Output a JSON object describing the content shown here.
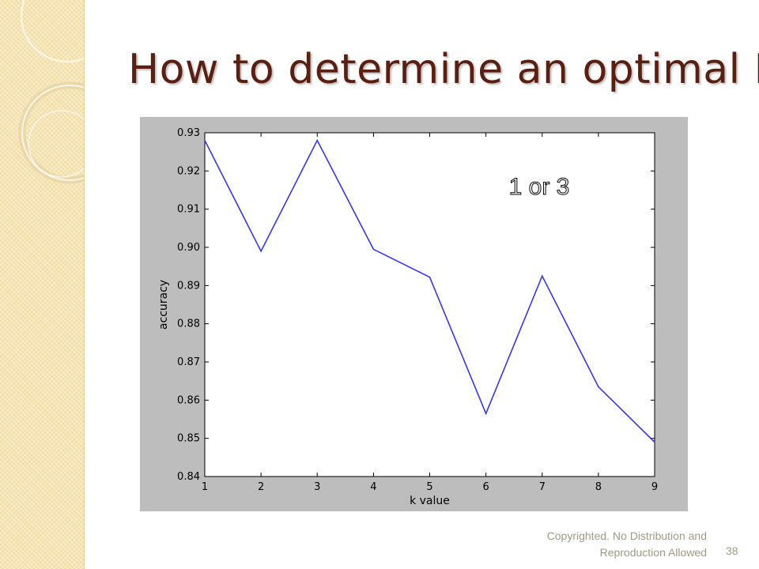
{
  "slide": {
    "title": "How to determine an optimal K",
    "footer_line1": "Copyrighted. No Distribution and",
    "footer_line2": "Reproduction Allowed",
    "page_number": "38"
  },
  "colors": {
    "title": "#5a1f10",
    "line": "#3434ff",
    "frame": "#bdbdbd",
    "side_strip": "#f6e4b3",
    "footer_text": "#a19a85"
  },
  "chart_data": {
    "type": "line",
    "title": "",
    "xlabel": "k value",
    "ylabel": "accuracy",
    "x": [
      1,
      2,
      3,
      4,
      5,
      6,
      7,
      8,
      9
    ],
    "series": [
      {
        "values": [
          0.928,
          0.899,
          0.928,
          0.8995,
          0.8922,
          0.8565,
          0.8925,
          0.8635,
          0.849
        ]
      }
    ],
    "xlim": [
      1,
      9
    ],
    "ylim": [
      0.84,
      0.93
    ],
    "xticks": [
      "1",
      "2",
      "3",
      "4",
      "5",
      "6",
      "7",
      "8",
      "9"
    ],
    "yticks": [
      "0.84",
      "0.85",
      "0.86",
      "0.87",
      "0.88",
      "0.89",
      "0.90",
      "0.91",
      "0.92",
      "0.93"
    ],
    "grid": false,
    "annotation": "1 or 3"
  }
}
